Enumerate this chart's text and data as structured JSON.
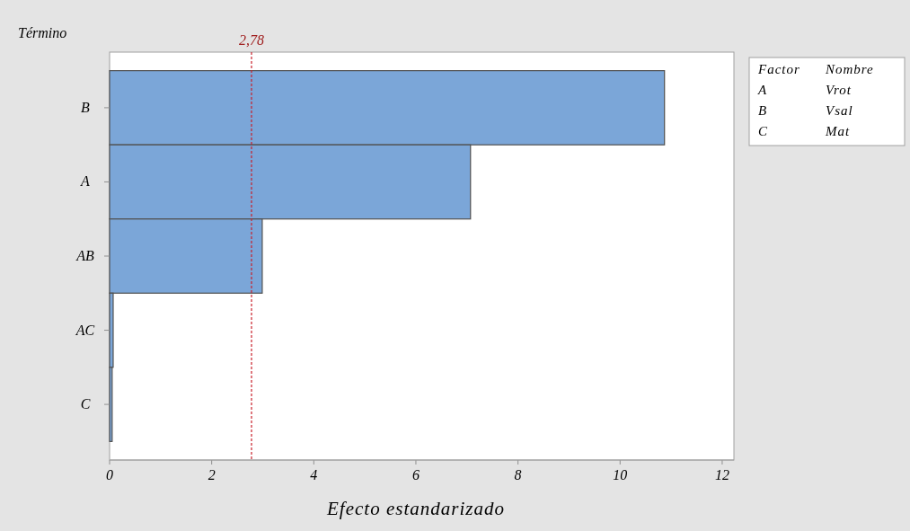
{
  "chart_data": {
    "type": "bar",
    "orientation": "horizontal",
    "ylabel": "Término",
    "xlabel": "Efecto estandarizado",
    "categories": [
      "B",
      "A",
      "AB",
      "AC",
      "C"
    ],
    "values": [
      10.87,
      7.07,
      2.99,
      0.07,
      0.05
    ],
    "color": "#7ba6d8",
    "xlim": [
      0,
      12.23
    ],
    "xticks": [
      0,
      2,
      4,
      6,
      8,
      10,
      12
    ],
    "ref_lines": [
      {
        "axis": "x",
        "value": 2.78,
        "label": "2,78",
        "color": "#c8202a",
        "line_style": "dashed"
      }
    ],
    "annotations": [
      "Factor",
      "Nombre",
      "A",
      "Vrot",
      "B",
      "Vsal",
      "C",
      "Mat"
    ],
    "grid": false
  }
}
